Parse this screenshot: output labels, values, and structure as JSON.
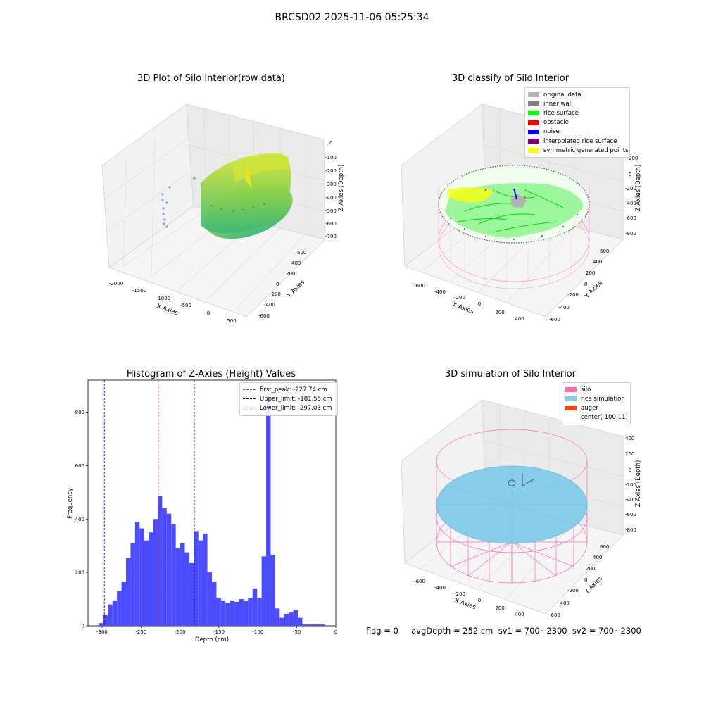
{
  "figure": {
    "suptitle": "BRCSD02 2025-11-06 05:25:34",
    "status_text": "flag = 0     avgDepth = 252 cm  sv1 = 700~2300  sv2 = 700~2300"
  },
  "panels": {
    "raw": {
      "title": "3D Plot of Silo Interior(row data)",
      "xlabel": "X Axies",
      "ylabel": "Y Axies",
      "zlabel": "Z Axies (Depth)",
      "xticks": [
        "-2000",
        "-1500",
        "-1000",
        "-500",
        "0",
        "500"
      ],
      "yticks": [
        "-600",
        "-400",
        "-200",
        "0",
        "200",
        "400",
        "600"
      ],
      "zticks": [
        "0",
        "-100",
        "-200",
        "-300",
        "-400",
        "-500",
        "-600",
        "-700"
      ]
    },
    "classify": {
      "title": "3D classify of Silo Interior",
      "xlabel": "X Axies",
      "ylabel": "Y Axies",
      "zlabel": "Z Axies (Depth)",
      "xticks": [
        "-600",
        "-400",
        "-200",
        "0",
        "200",
        "400"
      ],
      "yticks": [
        "-600",
        "-400",
        "-200",
        "0",
        "200",
        "400",
        "600"
      ],
      "zticks": [
        "200",
        "0",
        "-200",
        "-400",
        "-600",
        "-800"
      ],
      "legend": [
        {
          "label": "original data",
          "color": "#b3b3b3"
        },
        {
          "label": "inner wall",
          "color": "#808080"
        },
        {
          "label": "rice surface",
          "color": "#00ff00"
        },
        {
          "label": "obstacle",
          "color": "#ff0000"
        },
        {
          "label": "noise",
          "color": "#0000ff"
        },
        {
          "label": "interpolated rice surface",
          "color": "#800080"
        },
        {
          "label": "symmetric generated points",
          "color": "#ffff00"
        }
      ]
    },
    "simulation": {
      "title": "3D simulation of Silo Interior",
      "xlabel": "X Axies",
      "ylabel": "Y Axies",
      "zlabel": "Z Axies (Depth)",
      "xticks": [
        "-600",
        "-400",
        "-200",
        "0",
        "200",
        "400"
      ],
      "yticks": [
        "-600",
        "-400",
        "-200",
        "0",
        "200",
        "400",
        "600"
      ],
      "zticks": [
        "400",
        "200",
        "0",
        "-200",
        "-400",
        "-600",
        "-800"
      ],
      "legend": [
        {
          "label": "silo",
          "color": "#ff69b4"
        },
        {
          "label": "rice simulation",
          "color": "#87ceeb"
        },
        {
          "label": "auger",
          "color": "#ff4500"
        },
        {
          "label": "center(-100,11)",
          "color": ""
        }
      ]
    }
  },
  "chart_data": {
    "type": "bar",
    "title": "Histogram of Z-Axies (Height) Values",
    "xlabel": "Depth (cm)",
    "ylabel": "Frequency",
    "xlim": [
      -318,
      0
    ],
    "ylim": [
      0,
      920
    ],
    "xticks": [
      -300,
      -250,
      -200,
      -150,
      -100,
      -50,
      0
    ],
    "yticks": [
      0,
      200,
      400,
      600,
      800
    ],
    "bin_start": -304,
    "bin_width": 5.8,
    "values": [
      10,
      40,
      80,
      95,
      130,
      165,
      255,
      310,
      390,
      365,
      320,
      350,
      400,
      485,
      440,
      420,
      380,
      290,
      310,
      275,
      235,
      355,
      320,
      345,
      200,
      165,
      105,
      95,
      85,
      95,
      90,
      100,
      95,
      105,
      140,
      105,
      260,
      870,
      265,
      65,
      30,
      45,
      50,
      60,
      30,
      5,
      5,
      5,
      5,
      5
    ],
    "bar_color": "#4b4bff",
    "vlines": [
      {
        "label": "first_peak: -227.74 cm",
        "x": -227.74,
        "color": "#d62728"
      },
      {
        "label": "Upper_limit: -181.55 cm",
        "x": -181.55,
        "color": "#0000cc"
      },
      {
        "label": "Lower_limit: -297.03 cm",
        "x": -297.03,
        "color": "#0000cc"
      }
    ],
    "legend_position": "top-right"
  }
}
